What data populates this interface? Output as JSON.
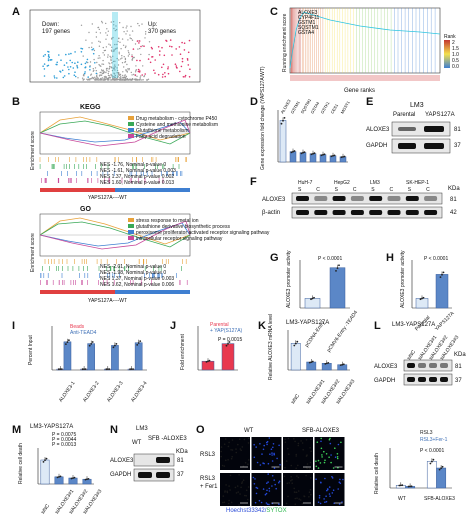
{
  "panels": {
    "A": {
      "label": "A",
      "down": "Down:",
      "down_count": "197 genes",
      "up": "Up:",
      "up_count": "370 genes"
    },
    "B": {
      "label": "B",
      "kegg_title": "KEGG",
      "go_title": "GO",
      "ylabel": "Enrichment score",
      "kegg_legend": [
        "Drug metabolism - cytochrome P450",
        "Cysteine and methionine metabolism",
        "Glutathione metabolism",
        "Fatty acid degradation"
      ],
      "kegg_stats": [
        "NES -1.76, Nominal p-value 0",
        "NES -1.61, Nominal p-value 0.003",
        "NES 1.37, Nominal p-value 0.002",
        "NES 1.60, Nominal p-value 0.013"
      ],
      "go_legend": [
        "stress response to metal ion",
        "glutathione derivative biosynthetic process",
        "peroxisome proliferator activated receptor signaling pathway",
        "intracellular receptor signaling pathway"
      ],
      "go_stats": [
        "NES -2.01, Nominal p-value 0",
        "NES -1.98, Nominal p-value 0",
        "NES 1.37, Nominal p-value 0.003",
        "NES 1.62, Nominal p-value 0.006"
      ],
      "kegg_xlabel": "YAPS127A----WT",
      "go_xlabel": "YAPS127A----WT"
    },
    "C": {
      "label": "C",
      "ylabel": "Running enrichment score",
      "xlabel": "Gene ranks",
      "legend_title": "Rank",
      "legend_values": [
        "2",
        "1.5",
        "1.0",
        "0.5",
        "0.0"
      ],
      "top_genes": [
        "ALOXE3",
        "CYP4F11",
        "GSTM1",
        "SQSTM1",
        "GSTA4"
      ]
    },
    "D": {
      "label": "D",
      "ylabel": "Gene expression fold change (YAPS127A/WT)"
    },
    "E": {
      "label": "E",
      "title": "LM3",
      "col1": "Parental",
      "col2": "YAPS127A",
      "row1": "ALOXE3",
      "row2": "GAPDH",
      "kda1": "81",
      "kda2": "37"
    },
    "F": {
      "label": "F",
      "lines": [
        "HuH-7",
        "HepG2",
        "LM3",
        "SK-HEP-1"
      ],
      "sc": [
        "S",
        "C",
        "S",
        "C",
        "S",
        "C",
        "S",
        "C"
      ],
      "row1": "ALOXE3",
      "row2": "β-actin",
      "kda": "KDa",
      "kda1": "81",
      "kda2": "42"
    },
    "G": {
      "label": "G",
      "ylabel": "ALOXE3 promoter activity",
      "pval": "P < 0.0001",
      "xcats": [
        "pCDNA-Entry",
        "pCMV6-Entry -TEAD4"
      ]
    },
    "H": {
      "label": "H",
      "ylabel": "ALOXE3 promoter activity",
      "pval": "P < 0.0001",
      "xcats": [
        "Parental",
        "YAPS127A"
      ]
    },
    "I": {
      "label": "I",
      "ylabel": "Percent Input",
      "legend": [
        "Beads",
        "Anti-TEAD4"
      ],
      "xcats": [
        "ALOXE3-1",
        "ALOXE3-2",
        "ALOXE3-3",
        "ALOXE3-4"
      ]
    },
    "J": {
      "label": "J",
      "ylabel": "Fold enrichment",
      "legend": [
        "Parental",
        "+ YAP(S127A)"
      ],
      "pval": "P = 0.0015"
    },
    "K": {
      "label": "K",
      "title": "LM3-YAPS127A",
      "ylabel": "Relative ALOXE3 mRNA level",
      "xcats": [
        "siNC",
        "siALOXE3#1",
        "siALOXE3#2",
        "siALOXE3#3"
      ]
    },
    "L": {
      "label": "L",
      "title": "LM3-YAPS127A",
      "cols": [
        "siNC",
        "siALOXE3#1",
        "siALOXE3#2",
        "siALOXE3#3"
      ],
      "row1": "ALOXE3",
      "row2": "GAPDH",
      "kda": "KDa",
      "kda1": "81",
      "kda2": "37"
    },
    "M": {
      "label": "M",
      "title": "LM3-YAPS127A",
      "ylabel": "Relative cell death",
      "pvals": [
        "P = 0.0075",
        "P = 0.0044",
        "P = 0.0013"
      ],
      "xcats": [
        "siNC",
        "siALOXE3#1",
        "siALOXE3#2",
        "siALOXE3#3"
      ]
    },
    "N": {
      "label": "N",
      "title": "LM3",
      "col1": "WT",
      "col2": "SFB -ALOXE3",
      "row1": "ALOXE3",
      "row2": "GAPDH",
      "kda": "KDa",
      "kda1": "81",
      "kda2": "37"
    },
    "O": {
      "label": "O",
      "col1": "WT",
      "col2": "SFB-ALOXE3",
      "row1": "RSL3",
      "row2": "RSL3 + Fer1",
      "stain1": "Hoechst33342",
      "stain2": "SYTOX",
      "legend": [
        "RSL3",
        "RSL3+Fer-1"
      ],
      "ylabel": "Relative cell death",
      "pval": "P < 0.0001",
      "xcats": [
        "WT",
        "SFB-ALOXE3"
      ]
    }
  },
  "colors": {
    "up": "#e0336b",
    "down": "#2f9fd8",
    "bar_blue": "#5b87c7",
    "bar_light": "#dde9f6",
    "dot_red": "#e8384f",
    "accent_cyan": "#2fc5e0"
  },
  "chart_data": [
    {
      "type": "bar",
      "title": "",
      "categories": [
        "ALOXE3",
        "GSTM1",
        "SQSTM1",
        "GSTA4",
        "GSTK1",
        "CES1",
        "MGST1"
      ],
      "values": [
        4.0,
        1.0,
        0.9,
        0.8,
        0.7,
        0.6,
        0.5
      ],
      "ylabel": "Gene expression fold change (YAPS127A/WT)",
      "ylim": [
        0,
        5
      ]
    },
    {
      "type": "bar",
      "categories": [
        "pCDNA-Entry",
        "pCMV6-Entry -TEAD4"
      ],
      "values": [
        1.0,
        4.2
      ],
      "ylabel": "ALOXE3 promoter activity",
      "ylim": [
        0,
        5
      ]
    },
    {
      "type": "bar",
      "categories": [
        "Parental",
        "YAPS127A"
      ],
      "values": [
        1.0,
        3.5
      ],
      "ylabel": "ALOXE3 promoter activity",
      "ylim": [
        0,
        5
      ]
    },
    {
      "type": "bar",
      "categories": [
        "ALOXE3-1",
        "ALOXE3-2",
        "ALOXE3-3",
        "ALOXE3-4"
      ],
      "series": [
        {
          "name": "Beads",
          "values": [
            0.1,
            0.1,
            0.1,
            0.1
          ]
        },
        {
          "name": "Anti-TEAD4",
          "values": [
            3.2,
            3.0,
            2.8,
            3.1
          ]
        }
      ],
      "ylabel": "Percent Input",
      "ylim": [
        0,
        5
      ]
    },
    {
      "type": "bar",
      "categories": [
        "Parental",
        "+ YAP(S127A)"
      ],
      "values": [
        1.0,
        3.0
      ],
      "ylabel": "Fold enrichment",
      "ylim": [
        0,
        5
      ]
    },
    {
      "type": "bar",
      "categories": [
        "siNC",
        "siALOXE3#1",
        "siALOXE3#2",
        "siALOXE3#3"
      ],
      "values": [
        1.0,
        0.3,
        0.25,
        0.2
      ],
      "ylabel": "Relative ALOXE3 mRNA level",
      "ylim": [
        0,
        1.5
      ]
    },
    {
      "type": "bar",
      "categories": [
        "siNC",
        "siALOXE3#1",
        "siALOXE3#2",
        "siALOXE3#3"
      ],
      "values": [
        1.0,
        0.3,
        0.25,
        0.2
      ],
      "ylabel": "Relative cell death",
      "ylim": [
        0,
        1.5
      ]
    },
    {
      "type": "bar",
      "categories": [
        "WT",
        "SFB-ALOXE3"
      ],
      "series": [
        {
          "name": "RSL3",
          "values": [
            1.0,
            10.0
          ]
        },
        {
          "name": "RSL3+Fer-1",
          "values": [
            0.6,
            7.5
          ]
        }
      ],
      "ylabel": "Relative cell death",
      "ylim": [
        0,
        15
      ]
    }
  ]
}
